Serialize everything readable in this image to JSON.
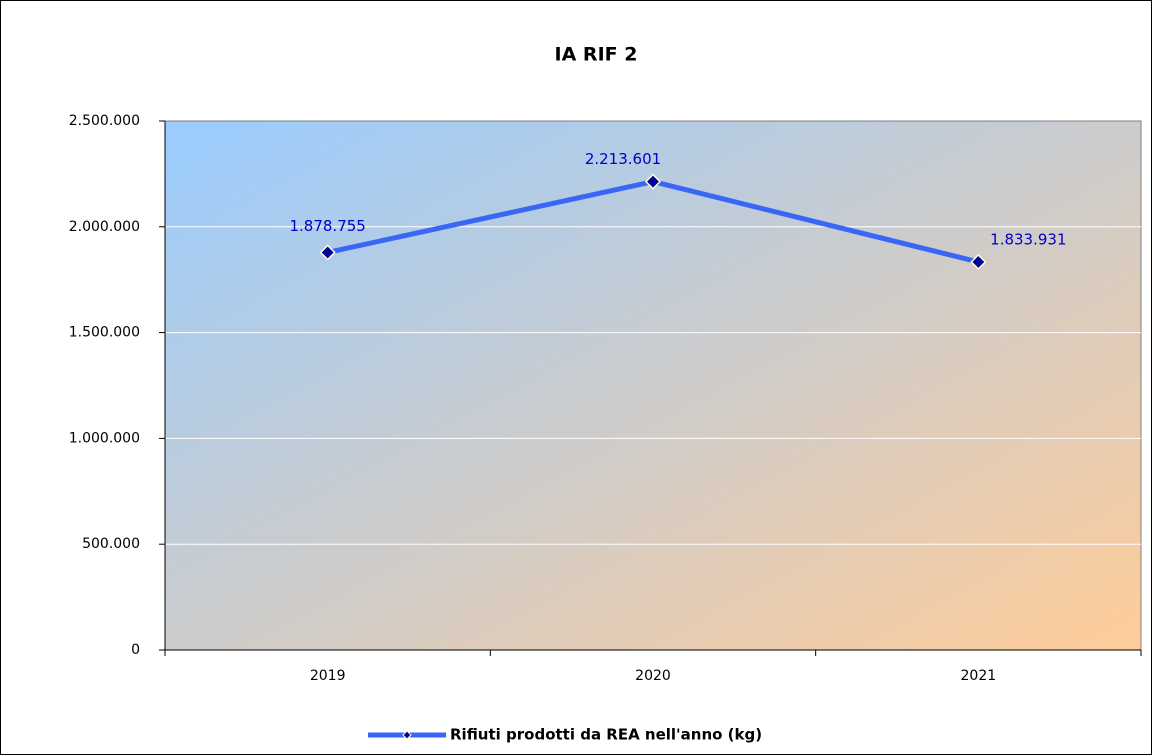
{
  "chart_data": {
    "type": "line",
    "title": "IA RIF 2",
    "categories": [
      "2019",
      "2020",
      "2021"
    ],
    "series": [
      {
        "name": "Rifiuti prodotti da REA nell'anno (kg)",
        "color": "#3a66f5",
        "marker_color": "#00009c",
        "values": [
          1878755,
          2213601,
          1833931
        ],
        "value_labels": [
          "1.878.755",
          "2.213.601",
          "1.833.931"
        ],
        "label_color": "#0000c8"
      }
    ],
    "ylim": [
      0,
      2500000
    ],
    "yticks": [
      0,
      {
        "value": 500000,
        "label": "500.000"
      },
      {
        "value": 1000000,
        "label": "1.000.000"
      },
      {
        "value": 1500000,
        "label": "1.500.000"
      },
      {
        "value": 2000000,
        "label": "2.000.000"
      },
      {
        "value": 2500000,
        "label": "2.500.000"
      }
    ],
    "grid": true,
    "legend": "bottom"
  }
}
